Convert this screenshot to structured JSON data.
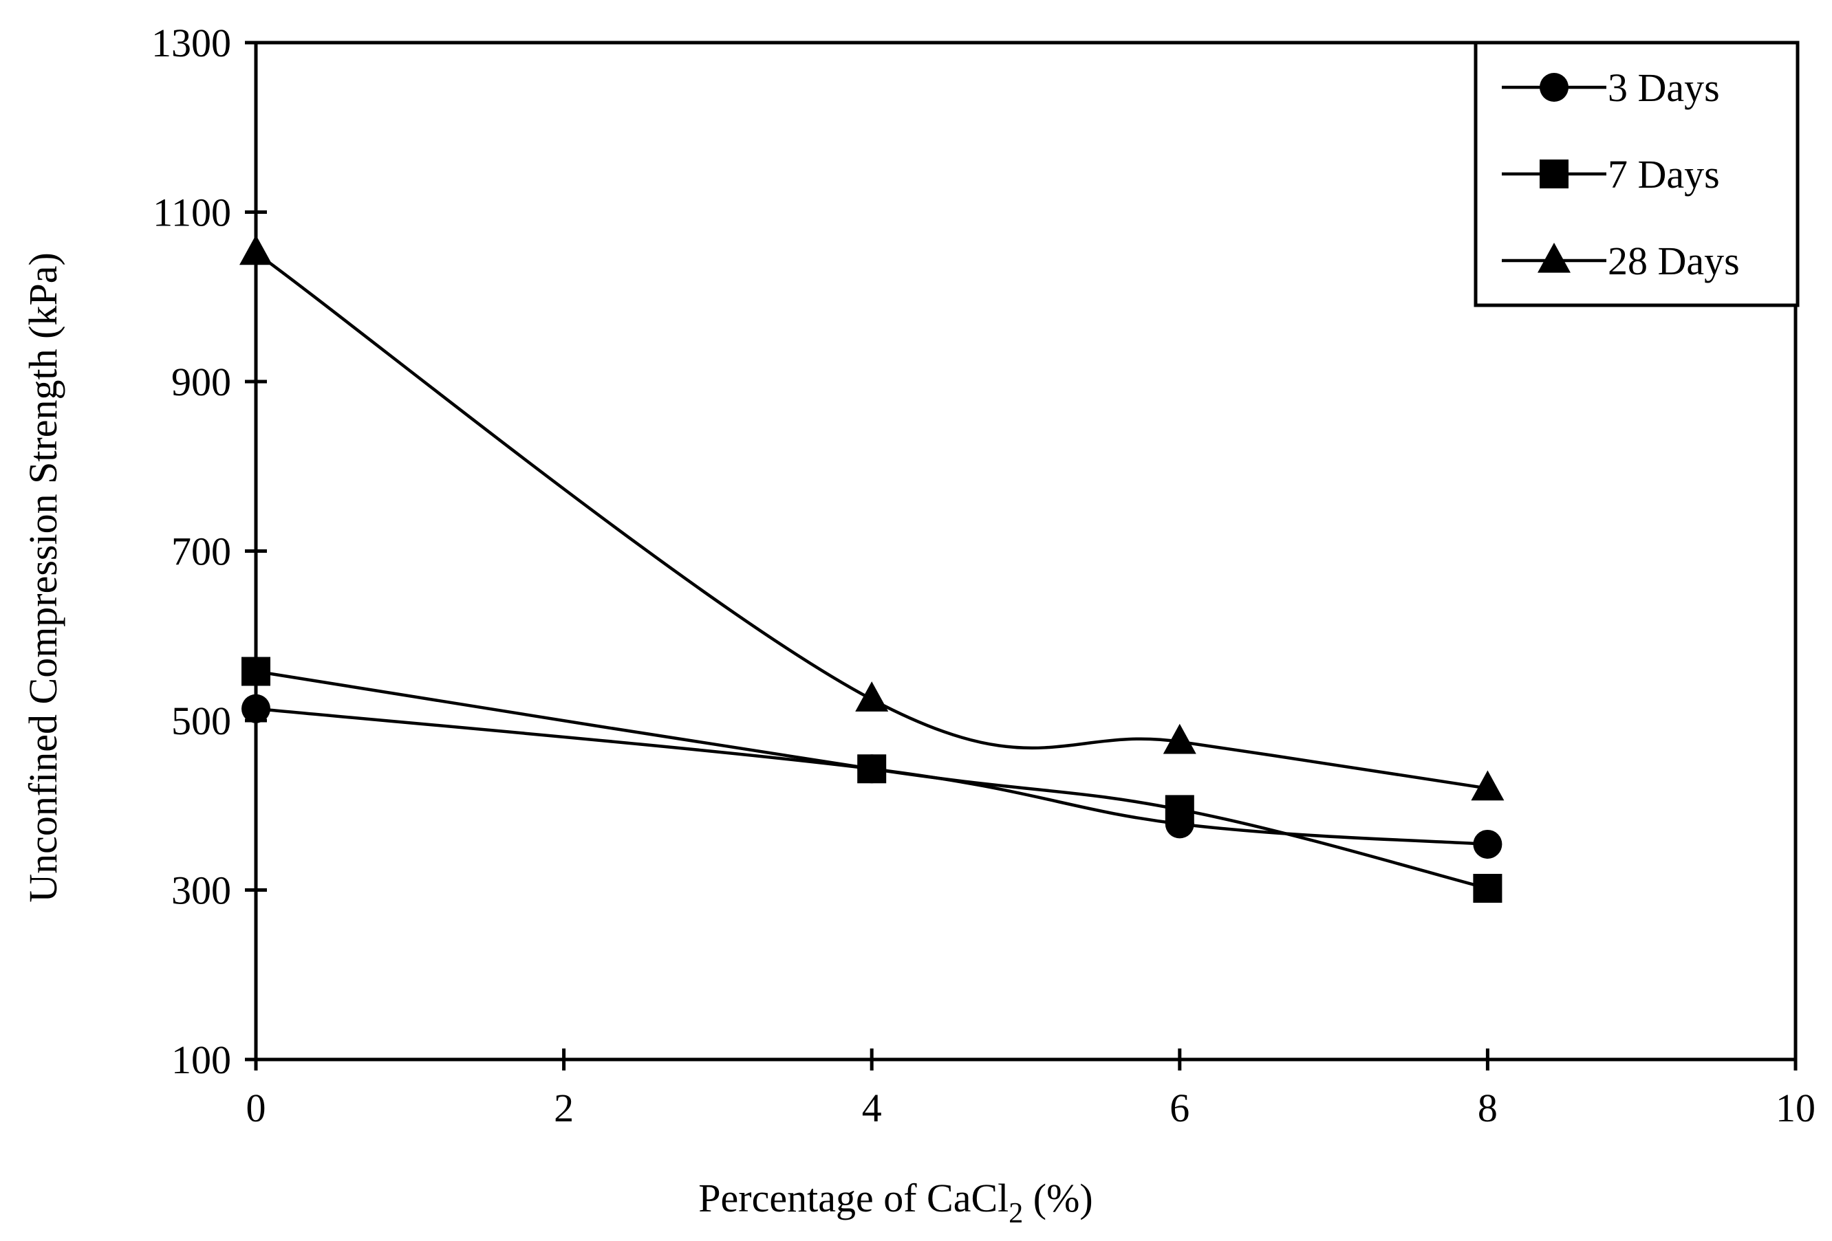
{
  "chart_data": {
    "type": "line",
    "title": "",
    "xlabel": "Percentage of CaCl",
    "xlabel_subscript": "2",
    "xlabel_suffix": " (%)",
    "ylabel": "Unconfined Compression Strength (kPa)",
    "xlim": [
      0,
      10
    ],
    "ylim": [
      100,
      1300
    ],
    "xticks": [
      0,
      2,
      4,
      6,
      8,
      10
    ],
    "yticks": [
      100,
      300,
      500,
      700,
      900,
      1100,
      1300
    ],
    "grid": false,
    "legend_position": "top-right",
    "x": [
      0,
      4,
      6,
      8
    ],
    "series": [
      {
        "name": "3 Days",
        "marker": "circle",
        "values": [
          514,
          443,
          378,
          354
        ]
      },
      {
        "name": "7 Days",
        "marker": "square",
        "values": [
          558,
          443,
          395,
          302
        ]
      },
      {
        "name": "28 Days",
        "marker": "triangle",
        "values": [
          1052,
          525,
          475,
          420
        ]
      }
    ],
    "colors": {
      "line": "#000000",
      "background": "#ffffff"
    }
  }
}
